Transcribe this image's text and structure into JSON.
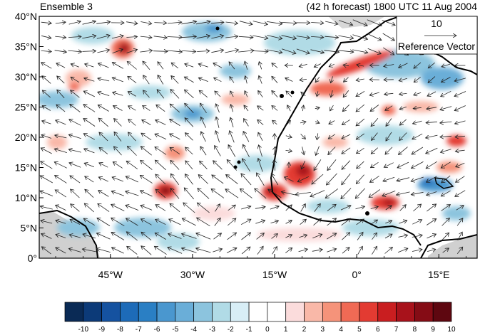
{
  "title": {
    "left": "Ensemble 3",
    "right": "(42 h forecast) 1800 UTC 11 Aug 2004"
  },
  "map": {
    "projection": "cylindrical equidistant",
    "lon_range": [
      -58,
      22
    ],
    "lat_range": [
      0,
      40
    ],
    "lat_ticks": [
      "0°",
      "5°N",
      "10°N",
      "15°N",
      "20°N",
      "25°N",
      "30°N",
      "35°N",
      "40°N"
    ],
    "lon_ticks": [
      "45°W",
      "30°W",
      "15°W",
      "0°",
      "15°E"
    ],
    "field": "shaded anomaly with wind vectors"
  },
  "reference_vector": {
    "value": "10",
    "label": "Reference Vector"
  },
  "colorbar": {
    "labels": [
      "-10",
      "-9",
      "-8",
      "-7",
      "-6",
      "-5",
      "-4",
      "-3",
      "-2",
      "-1",
      "0",
      "1",
      "2",
      "3",
      "4",
      "5",
      "6",
      "7",
      "8",
      "9",
      "10"
    ],
    "colors": [
      "#0a2a55",
      "#0c3a78",
      "#1552a0",
      "#1d6bb8",
      "#2a7fc4",
      "#4a97cf",
      "#6aaed8",
      "#8cc4de",
      "#b1dbe6",
      "#d8eef6",
      "#ffffff",
      "#ffffff",
      "#fbdcdc",
      "#f9b8a8",
      "#f5937a",
      "#f06a55",
      "#e33b32",
      "#c91e20",
      "#a8121b",
      "#850c15",
      "#5e0710"
    ]
  }
}
